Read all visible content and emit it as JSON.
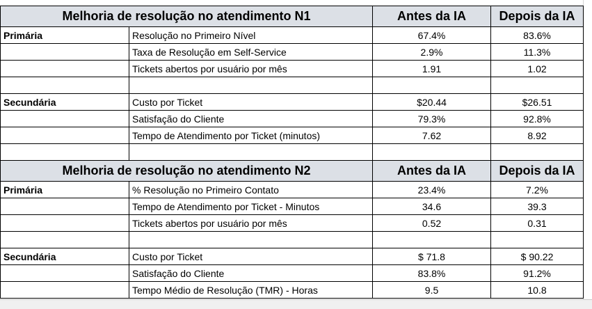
{
  "sections": [
    {
      "title": "Melhoria de resolução no atendimento N1",
      "before_header": "Antes da IA",
      "after_header": "Depois da IA",
      "groups": [
        {
          "name": "Primária",
          "rows": [
            {
              "label": "Resolução no Primeiro Nível",
              "before": "67.4%",
              "after": "83.6%"
            },
            {
              "label": "Taxa de Resolução em Self-Service",
              "before": "2.9%",
              "after": "11.3%"
            },
            {
              "label": "Tickets abertos por usuário por mês",
              "before": "1.91",
              "after": "1.02"
            }
          ]
        },
        {
          "name": "Secundária",
          "rows": [
            {
              "label": "Custo por Ticket",
              "before": "$20.44",
              "after": "$26.51"
            },
            {
              "label": "Satisfação do Cliente",
              "before": "79.3%",
              "after": "92.8%"
            },
            {
              "label": "Tempo de Atendimento por Ticket (minutos)",
              "before": "7.62",
              "after": "8.92"
            }
          ]
        }
      ]
    },
    {
      "title": "Melhoria de resolução no atendimento N2",
      "before_header": "Antes da IA",
      "after_header": "Depois da IA",
      "groups": [
        {
          "name": "Primária",
          "rows": [
            {
              "label": "% Resolução no Primeiro Contato",
              "before": "23.4%",
              "after": "7.2%"
            },
            {
              "label": "Tempo de Atendimento por Ticket - Minutos",
              "before": "34.6",
              "after": "39.3"
            },
            {
              "label": "Tickets abertos por usuário por mês",
              "before": "0.52",
              "after": "0.31"
            }
          ]
        },
        {
          "name": "Secundária",
          "rows": [
            {
              "label": "Custo por Ticket",
              "before": "$ 71.8",
              "after": "$ 90.22"
            },
            {
              "label": "Satisfação do Cliente",
              "before": "83.8%",
              "after": "91.2%"
            },
            {
              "label": "Tempo Médio de Resolução (TMR) - Horas",
              "before": "9.5",
              "after": "10.8"
            }
          ]
        }
      ]
    }
  ]
}
